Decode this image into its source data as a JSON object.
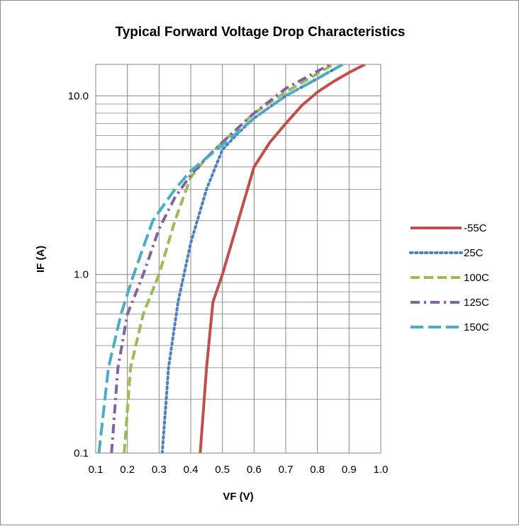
{
  "chart_data": {
    "type": "line",
    "title": "Typical Forward Voltage Drop Characteristics",
    "xlabel": "VF (V)",
    "ylabel": "IF (A)",
    "xlim": [
      0.1,
      1.0
    ],
    "ylim": [
      0.1,
      15
    ],
    "y_scale": "log",
    "grid": true,
    "legend_position": "right",
    "x_ticks": [
      "0.1",
      "0.2",
      "0.3",
      "0.4",
      "0.5",
      "0.6",
      "0.7",
      "0.8",
      "0.9",
      "1.0"
    ],
    "y_ticks": [
      {
        "value": 0.1,
        "label": "0.1"
      },
      {
        "value": 1,
        "label": "1.0"
      },
      {
        "value": 10,
        "label": "10.0"
      }
    ],
    "series": [
      {
        "name": "-55C",
        "color": "#c0504d",
        "dash": "solid",
        "points": [
          [
            0.43,
            0.1
          ],
          [
            0.45,
            0.3
          ],
          [
            0.47,
            0.7
          ],
          [
            0.5,
            1.0
          ],
          [
            0.55,
            2.0
          ],
          [
            0.6,
            4.0
          ],
          [
            0.65,
            5.5
          ],
          [
            0.7,
            7.0
          ],
          [
            0.75,
            8.8
          ],
          [
            0.8,
            10.5
          ],
          [
            0.85,
            12.0
          ],
          [
            0.9,
            13.5
          ],
          [
            0.95,
            15.0
          ]
        ]
      },
      {
        "name": "25C",
        "color": "#4f81bd",
        "dash": "dot",
        "points": [
          [
            0.31,
            0.1
          ],
          [
            0.33,
            0.3
          ],
          [
            0.36,
            0.7
          ],
          [
            0.4,
            1.5
          ],
          [
            0.45,
            3.0
          ],
          [
            0.5,
            5.0
          ],
          [
            0.55,
            6.2
          ],
          [
            0.6,
            7.5
          ],
          [
            0.7,
            10.0
          ],
          [
            0.8,
            12.5
          ],
          [
            0.88,
            15.0
          ]
        ]
      },
      {
        "name": "100C",
        "color": "#9bbb59",
        "dash": "dash",
        "points": [
          [
            0.19,
            0.1
          ],
          [
            0.21,
            0.3
          ],
          [
            0.25,
            0.6
          ],
          [
            0.3,
            1.0
          ],
          [
            0.35,
            2.0
          ],
          [
            0.4,
            3.5
          ],
          [
            0.45,
            4.5
          ],
          [
            0.5,
            5.5
          ],
          [
            0.6,
            8.0
          ],
          [
            0.7,
            10.5
          ],
          [
            0.85,
            15.0
          ]
        ]
      },
      {
        "name": "125C",
        "color": "#8064a2",
        "dash": "dashdot",
        "points": [
          [
            0.15,
            0.1
          ],
          [
            0.17,
            0.3
          ],
          [
            0.2,
            0.6
          ],
          [
            0.25,
            1.0
          ],
          [
            0.3,
            1.8
          ],
          [
            0.35,
            2.7
          ],
          [
            0.4,
            3.6
          ],
          [
            0.45,
            4.5
          ],
          [
            0.5,
            5.5
          ],
          [
            0.6,
            8.0
          ],
          [
            0.7,
            11.0
          ],
          [
            0.84,
            15.0
          ]
        ]
      },
      {
        "name": "150C",
        "color": "#4bacc6",
        "dash": "longdash",
        "points": [
          [
            0.11,
            0.1
          ],
          [
            0.14,
            0.3
          ],
          [
            0.18,
            0.6
          ],
          [
            0.22,
            1.0
          ],
          [
            0.28,
            2.0
          ],
          [
            0.35,
            3.0
          ],
          [
            0.4,
            3.8
          ],
          [
            0.45,
            4.5
          ],
          [
            0.5,
            5.3
          ],
          [
            0.6,
            7.5
          ],
          [
            0.7,
            10.0
          ],
          [
            0.8,
            12.5
          ],
          [
            0.88,
            15.0
          ]
        ]
      }
    ]
  }
}
